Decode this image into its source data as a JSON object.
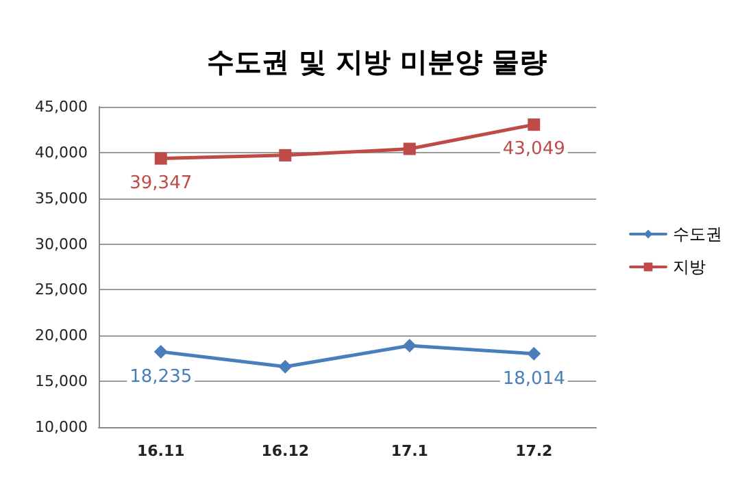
{
  "chart_data": {
    "type": "line",
    "title": "수도권 및 지방 미분양 물량",
    "categories": [
      "16.11",
      "16.12",
      "17.1",
      "17.2"
    ],
    "series": [
      {
        "name": "수도권",
        "color": "#4a7ebb",
        "marker": "diamond",
        "values": [
          18235,
          16600,
          18900,
          18014
        ],
        "value_labels": [
          "18,235",
          null,
          null,
          "18,014"
        ]
      },
      {
        "name": "지방",
        "color": "#be4b48",
        "marker": "square",
        "values": [
          39347,
          39700,
          40400,
          43049
        ],
        "value_labels": [
          "39,347",
          null,
          null,
          "43,049"
        ]
      }
    ],
    "ylim": [
      10000,
      45000
    ],
    "yticks": [
      {
        "value": 10000,
        "label": "10,000"
      },
      {
        "value": 15000,
        "label": "15,000"
      },
      {
        "value": 20000,
        "label": "20,000"
      },
      {
        "value": 25000,
        "label": "25,000"
      },
      {
        "value": 30000,
        "label": "30,000"
      },
      {
        "value": 35000,
        "label": "35,000"
      },
      {
        "value": 40000,
        "label": "40,000"
      },
      {
        "value": 45000,
        "label": "45,000"
      }
    ],
    "grid": "y",
    "legend": "right"
  }
}
